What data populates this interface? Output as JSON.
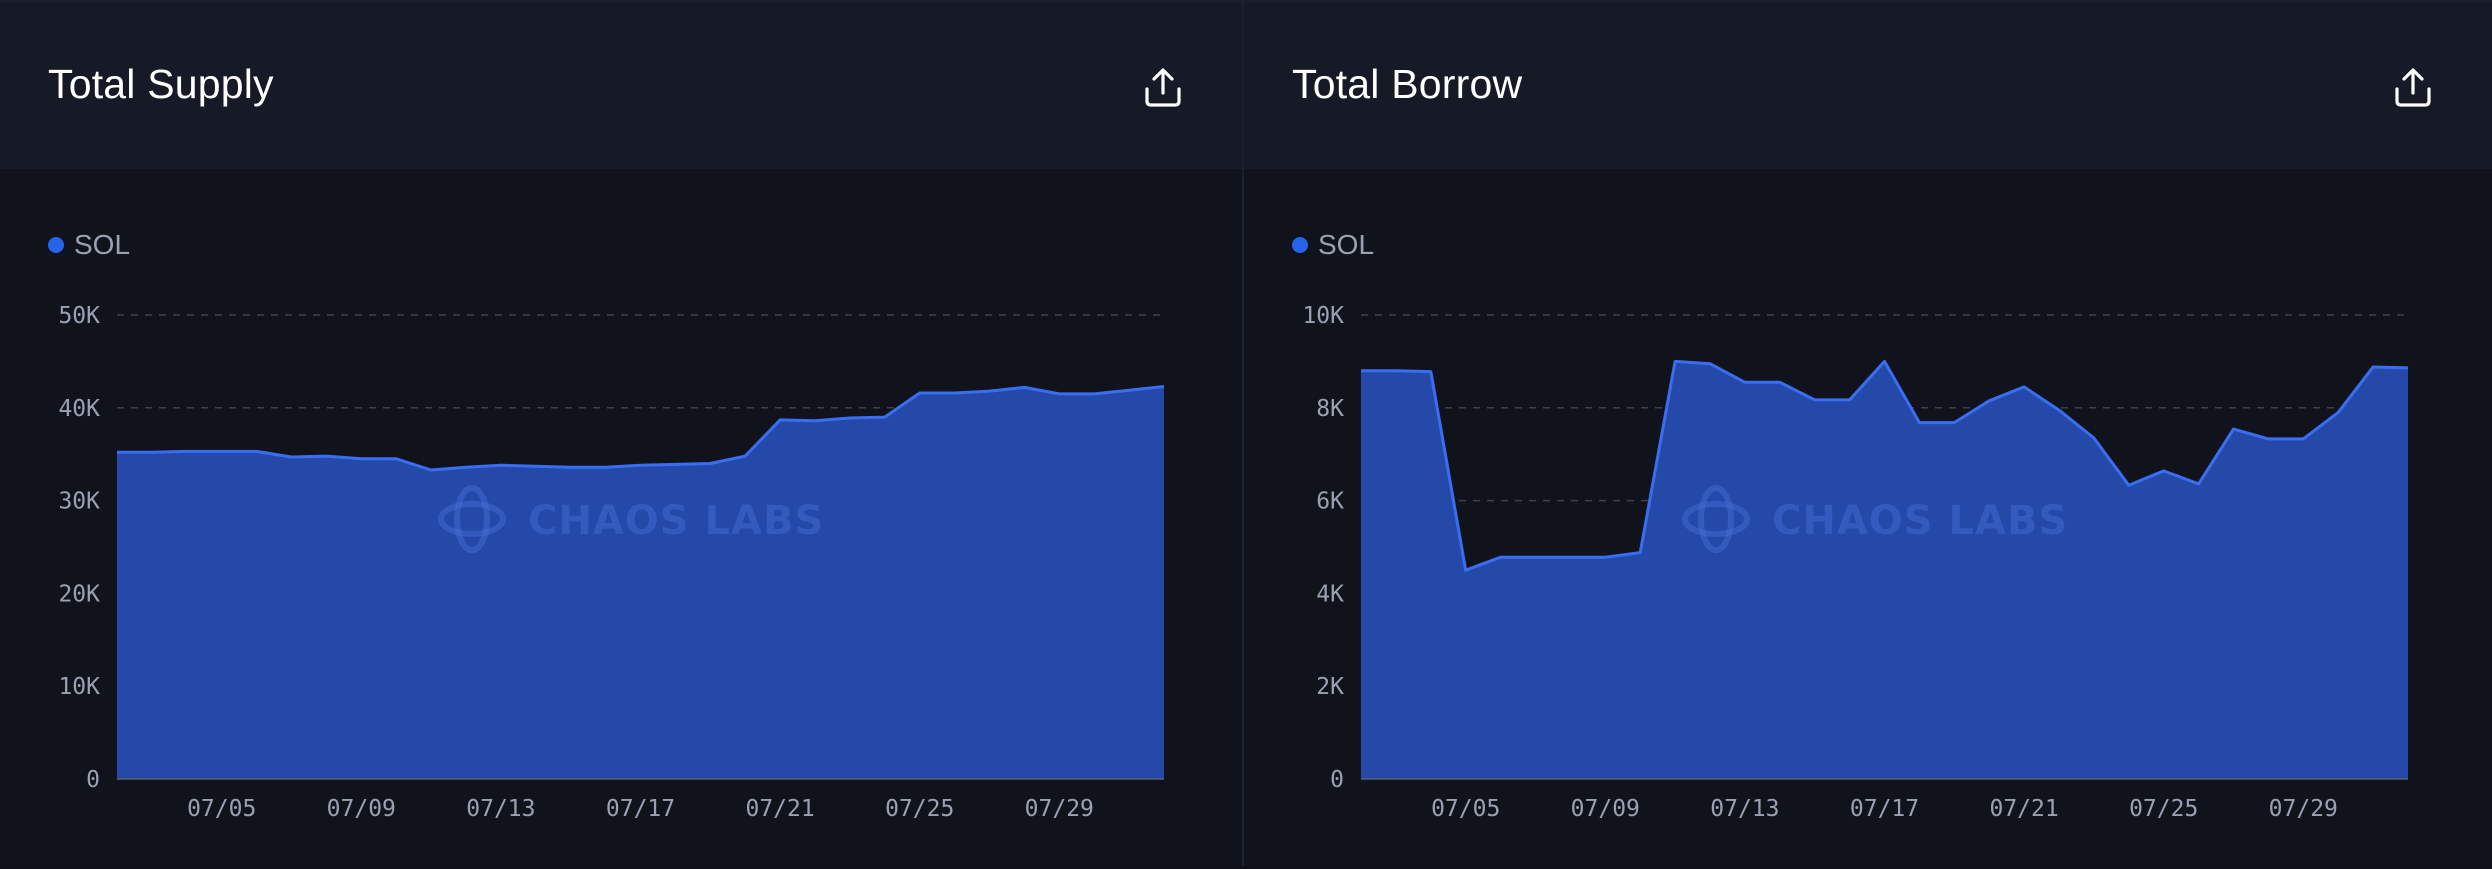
{
  "panels": [
    {
      "title": "Total Supply",
      "export_icon": "share-upload-icon",
      "legend": "SOL",
      "watermark": "CHAOS LABS",
      "chart_data": {
        "type": "area",
        "title": "Total Supply",
        "xlabel": "",
        "ylabel": "",
        "x_tick_labels": [
          "07/05",
          "07/09",
          "07/13",
          "07/17",
          "07/21",
          "07/25",
          "07/29"
        ],
        "y_tick_labels": [
          "0",
          "10K",
          "20K",
          "30K",
          "40K",
          "50K"
        ],
        "ylim": [
          0,
          50000
        ],
        "grid": true,
        "legend_position": "top-left",
        "series": [
          {
            "name": "SOL",
            "color": "#2f5de0",
            "x": [
              "07/02",
              "07/03",
              "07/04",
              "07/05",
              "07/06",
              "07/07",
              "07/08",
              "07/09",
              "07/10",
              "07/11",
              "07/12",
              "07/13",
              "07/14",
              "07/15",
              "07/16",
              "07/17",
              "07/18",
              "07/19",
              "07/20",
              "07/21",
              "07/22",
              "07/23",
              "07/24",
              "07/25",
              "07/26",
              "07/27",
              "07/28",
              "07/29",
              "07/30",
              "07/31",
              "08/01"
            ],
            "values": [
              35200,
              35200,
              35300,
              35300,
              35300,
              34700,
              34800,
              34500,
              34500,
              33300,
              33600,
              33800,
              33700,
              33600,
              33600,
              33800,
              33900,
              34000,
              34800,
              38700,
              38600,
              38900,
              39000,
              41600,
              41600,
              41800,
              42200,
              41500,
              41500,
              41900,
              42300
            ]
          }
        ]
      }
    },
    {
      "title": "Total Borrow",
      "export_icon": "share-upload-icon",
      "legend": "SOL",
      "watermark": "CHAOS LABS",
      "chart_data": {
        "type": "area",
        "title": "Total Borrow",
        "xlabel": "",
        "ylabel": "",
        "x_tick_labels": [
          "07/05",
          "07/09",
          "07/13",
          "07/17",
          "07/21",
          "07/25",
          "07/29"
        ],
        "y_tick_labels": [
          "0",
          "2K",
          "4K",
          "6K",
          "8K",
          "10K"
        ],
        "ylim": [
          0,
          10000
        ],
        "grid": true,
        "legend_position": "top-left",
        "series": [
          {
            "name": "SOL",
            "color": "#2f5de0",
            "x": [
              "07/02",
              "07/03",
              "07/04",
              "07/05",
              "07/06",
              "07/07",
              "07/08",
              "07/09",
              "07/10",
              "07/11",
              "07/12",
              "07/13",
              "07/14",
              "07/15",
              "07/16",
              "07/17",
              "07/18",
              "07/19",
              "07/20",
              "07/21",
              "07/22",
              "07/23",
              "07/24",
              "07/25",
              "07/26",
              "07/27",
              "07/28",
              "07/29",
              "07/30",
              "07/31",
              "08/01"
            ],
            "values": [
              8800,
              8800,
              8780,
              4500,
              4780,
              4780,
              4780,
              4780,
              4880,
              9000,
              8950,
              8550,
              8550,
              8170,
              8170,
              9000,
              7680,
              7680,
              8150,
              8450,
              7950,
              7350,
              6330,
              6640,
              6360,
              7540,
              7330,
              7330,
              7900,
              8880,
              8860
            ]
          }
        ]
      }
    }
  ]
}
